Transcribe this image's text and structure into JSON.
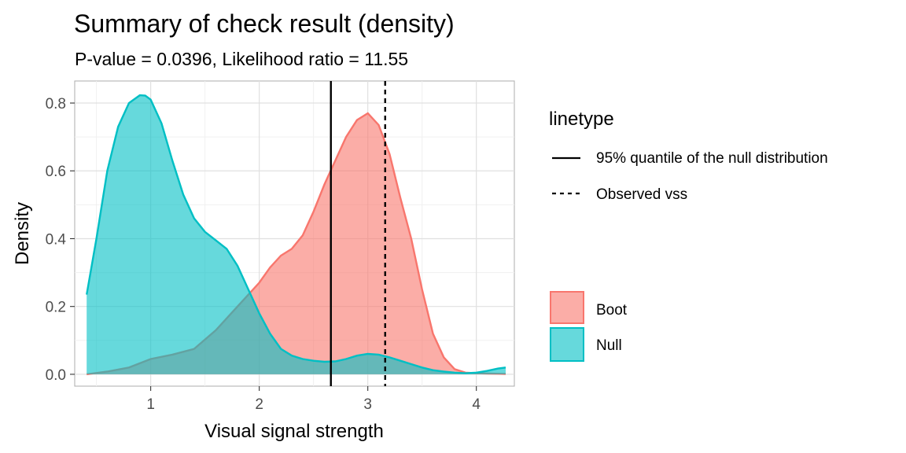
{
  "chart_data": {
    "type": "area",
    "title": "Summary of check result (density)",
    "subtitle": "P-value = 0.0396, Likelihood ratio = 11.55",
    "xlabel": "Visual signal strength",
    "ylabel": "Density",
    "xlim": [
      0.3,
      4.35
    ],
    "ylim": [
      -0.035,
      0.865
    ],
    "x_ticks": [
      1,
      2,
      3,
      4
    ],
    "y_ticks": [
      0.0,
      0.2,
      0.4,
      0.6,
      0.8
    ],
    "x_tick_labels": [
      "1",
      "2",
      "3",
      "4"
    ],
    "y_tick_labels": [
      "0.0",
      "0.2",
      "0.4",
      "0.6",
      "0.8"
    ],
    "grid": true,
    "series": [
      {
        "name": "Boot",
        "color": "#F8766D",
        "x": [
          0.41,
          0.6,
          0.8,
          1.0,
          1.2,
          1.4,
          1.6,
          1.8,
          2.0,
          2.1,
          2.2,
          2.3,
          2.4,
          2.5,
          2.6,
          2.7,
          2.8,
          2.9,
          3.0,
          3.1,
          3.2,
          3.3,
          3.4,
          3.5,
          3.6,
          3.7,
          3.8,
          3.9,
          4.0,
          4.1,
          4.27
        ],
        "values": [
          0.0,
          0.008,
          0.02,
          0.045,
          0.058,
          0.075,
          0.13,
          0.2,
          0.27,
          0.315,
          0.35,
          0.37,
          0.41,
          0.48,
          0.56,
          0.63,
          0.7,
          0.75,
          0.77,
          0.735,
          0.65,
          0.52,
          0.4,
          0.25,
          0.12,
          0.05,
          0.015,
          0.005,
          0.003,
          0.002,
          0.001
        ]
      },
      {
        "name": "Null",
        "color": "#00BFC4",
        "x": [
          0.41,
          0.5,
          0.6,
          0.7,
          0.8,
          0.9,
          0.95,
          1.0,
          1.1,
          1.2,
          1.3,
          1.4,
          1.5,
          1.6,
          1.7,
          1.8,
          1.9,
          2.0,
          2.1,
          2.2,
          2.3,
          2.4,
          2.5,
          2.6,
          2.7,
          2.8,
          2.9,
          3.0,
          3.1,
          3.2,
          3.3,
          3.4,
          3.5,
          3.6,
          3.7,
          3.8,
          3.9,
          4.0,
          4.1,
          4.2,
          4.27
        ],
        "values": [
          0.235,
          0.4,
          0.6,
          0.73,
          0.8,
          0.823,
          0.822,
          0.81,
          0.74,
          0.63,
          0.53,
          0.46,
          0.42,
          0.395,
          0.37,
          0.32,
          0.25,
          0.18,
          0.12,
          0.075,
          0.055,
          0.045,
          0.04,
          0.037,
          0.038,
          0.045,
          0.055,
          0.06,
          0.058,
          0.05,
          0.04,
          0.03,
          0.02,
          0.012,
          0.008,
          0.005,
          0.003,
          0.005,
          0.01,
          0.017,
          0.02
        ]
      }
    ],
    "vlines": [
      {
        "x": 2.66,
        "style": "solid",
        "label": "95% quantile of the null distribution"
      },
      {
        "x": 3.16,
        "style": "dashed",
        "label": "Observed vss"
      }
    ],
    "legend": {
      "linetype_title": "linetype",
      "placement": "right"
    }
  }
}
